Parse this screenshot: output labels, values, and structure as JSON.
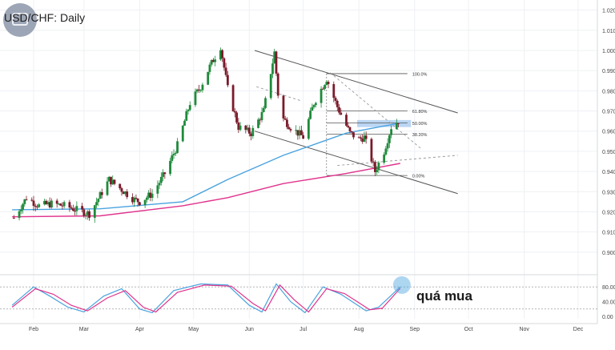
{
  "chart_data": {
    "type": "candlestick",
    "title": "USD/CHF: Daily",
    "x_axis": {
      "months": [
        "Feb",
        "Mar",
        "Apr",
        "May",
        "Jun",
        "Jul",
        "Aug",
        "Sep",
        "Oct",
        "Nov",
        "Dec"
      ]
    },
    "y_axis": {
      "range": [
        0.89,
        1.025
      ],
      "ticks": [
        "1.0200",
        "1.0100",
        "1.0000",
        "0.9900",
        "0.9800",
        "0.9700",
        "0.9600",
        "0.9500",
        "0.9400",
        "0.9300",
        "0.9200",
        "0.9100",
        "0.9000"
      ]
    },
    "price_path": [
      [
        "2022-01-21",
        0.917
      ],
      [
        "2022-01-28",
        0.927
      ],
      [
        "2022-02-04",
        0.923
      ],
      [
        "2022-02-11",
        0.924
      ],
      [
        "2022-02-18",
        0.923
      ],
      [
        "2022-02-25",
        0.921
      ],
      [
        "2022-03-04",
        0.919
      ],
      [
        "2022-03-08",
        0.925
      ],
      [
        "2022-03-15",
        0.936
      ],
      [
        "2022-03-22",
        0.931
      ],
      [
        "2022-03-29",
        0.926
      ],
      [
        "2022-04-01",
        0.925
      ],
      [
        "2022-04-08",
        0.929
      ],
      [
        "2022-04-15",
        0.939
      ],
      [
        "2022-04-22",
        0.953
      ],
      [
        "2022-04-29",
        0.974
      ],
      [
        "2022-05-05",
        0.982
      ],
      [
        "2022-05-10",
        0.992
      ],
      [
        "2022-05-16",
        1.002
      ],
      [
        "2022-05-20",
        0.981
      ],
      [
        "2022-05-26",
        0.962
      ],
      [
        "2022-06-02",
        0.959
      ],
      [
        "2022-06-09",
        0.97
      ],
      [
        "2022-06-15",
        0.999
      ],
      [
        "2022-06-18",
        0.968
      ],
      [
        "2022-06-24",
        0.962
      ],
      [
        "2022-07-01",
        0.957
      ],
      [
        "2022-07-07",
        0.974
      ],
      [
        "2022-07-14",
        0.986
      ],
      [
        "2022-07-20",
        0.972
      ],
      [
        "2022-07-27",
        0.959
      ],
      [
        "2022-08-01",
        0.956
      ],
      [
        "2022-08-04",
        0.957
      ],
      [
        "2022-08-08",
        0.946
      ],
      [
        "2022-08-10",
        0.94
      ],
      [
        "2022-08-15",
        0.95
      ],
      [
        "2022-08-19",
        0.962
      ],
      [
        "2022-08-24",
        0.966
      ]
    ],
    "moving_averages": [
      {
        "color": "#4aa3df",
        "points": [
          [
            "2022-01-20",
            0.921
          ],
          [
            "2022-03-10",
            0.9215
          ],
          [
            "2022-04-25",
            0.925
          ],
          [
            "2022-05-20",
            0.936
          ],
          [
            "2022-06-20",
            0.948
          ],
          [
            "2022-07-25",
            0.959
          ],
          [
            "2022-08-24",
            0.964
          ]
        ]
      },
      {
        "color": "#e0338c",
        "points": [
          [
            "2022-01-20",
            0.9175
          ],
          [
            "2022-03-10",
            0.918
          ],
          [
            "2022-04-25",
            0.923
          ],
          [
            "2022-05-20",
            0.927
          ],
          [
            "2022-06-20",
            0.934
          ],
          [
            "2022-07-25",
            0.939
          ],
          [
            "2022-08-24",
            0.944
          ]
        ]
      }
    ],
    "channel_lines": [
      {
        "from": [
          "2022-06-04",
          1.0
        ],
        "to": [
          "2022-09-25",
          0.969
        ]
      },
      {
        "from": [
          "2022-06-04",
          0.96
        ],
        "to": [
          "2022-09-25",
          0.929
        ]
      }
    ],
    "dashed_lines": [
      {
        "from": [
          "2022-06-05",
          0.982
        ],
        "to": [
          "2022-06-30",
          0.975
        ]
      },
      {
        "from": [
          "2022-07-16",
          0.989
        ],
        "to": [
          "2022-09-05",
          0.951
        ]
      },
      {
        "from": [
          "2022-07-20",
          0.943
        ],
        "to": [
          "2022-09-25",
          0.948
        ]
      }
    ],
    "fibonacci": {
      "from_date": "2022-07-14",
      "to_date": "2022-08-28",
      "levels": [
        {
          "label": "100.0%",
          "value": 0.9885
        },
        {
          "label": "61.80%",
          "value": 0.97
        },
        {
          "label": "50.00%",
          "value": 0.964
        },
        {
          "label": "38.20%",
          "value": 0.9585
        },
        {
          "label": "0.00%",
          "value": 0.938
        }
      ]
    },
    "highlight_zone": {
      "from_date": "2022-07-31",
      "to_date": "2022-08-30",
      "low": 0.962,
      "high": 0.9655,
      "color": "#9ec5ee"
    },
    "oscillator": {
      "range": [
        0,
        100
      ],
      "ticks": [
        "80.00",
        "40.00",
        "0.00"
      ],
      "guide_levels": [
        80,
        20
      ],
      "series": [
        {
          "name": "",
          "color": "#4aa3df",
          "points": [
            [
              "2022-01-20",
              30
            ],
            [
              "2022-02-01",
              80
            ],
            [
              "2022-02-10",
              55
            ],
            [
              "2022-02-20",
              25
            ],
            [
              "2022-03-01",
              12
            ],
            [
              "2022-03-12",
              55
            ],
            [
              "2022-03-22",
              75
            ],
            [
              "2022-04-01",
              20
            ],
            [
              "2022-04-08",
              10
            ],
            [
              "2022-04-20",
              70
            ],
            [
              "2022-05-05",
              88
            ],
            [
              "2022-05-20",
              85
            ],
            [
              "2022-06-01",
              30
            ],
            [
              "2022-06-08",
              12
            ],
            [
              "2022-06-16",
              88
            ],
            [
              "2022-06-24",
              40
            ],
            [
              "2022-07-02",
              10
            ],
            [
              "2022-07-12",
              80
            ],
            [
              "2022-07-22",
              60
            ],
            [
              "2022-08-05",
              15
            ],
            [
              "2022-08-12",
              25
            ],
            [
              "2022-08-24",
              80
            ]
          ]
        },
        {
          "name": "",
          "color": "#e0338c",
          "points": [
            [
              "2022-01-20",
              25
            ],
            [
              "2022-02-02",
              75
            ],
            [
              "2022-02-12",
              60
            ],
            [
              "2022-02-22",
              30
            ],
            [
              "2022-03-03",
              15
            ],
            [
              "2022-03-14",
              50
            ],
            [
              "2022-03-24",
              70
            ],
            [
              "2022-04-03",
              25
            ],
            [
              "2022-04-10",
              12
            ],
            [
              "2022-04-22",
              65
            ],
            [
              "2022-05-07",
              85
            ],
            [
              "2022-05-22",
              82
            ],
            [
              "2022-06-03",
              35
            ],
            [
              "2022-06-10",
              15
            ],
            [
              "2022-06-18",
              85
            ],
            [
              "2022-06-26",
              45
            ],
            [
              "2022-07-04",
              12
            ],
            [
              "2022-07-14",
              75
            ],
            [
              "2022-07-24",
              62
            ],
            [
              "2022-08-07",
              18
            ],
            [
              "2022-08-14",
              22
            ],
            [
              "2022-08-24",
              76
            ]
          ]
        }
      ],
      "marker_date": "2022-08-24",
      "marker_value": 85,
      "annotation": "quá mua"
    }
  },
  "colors": {
    "bullish": "#1f8a3b",
    "bearish": "#7a1a2a",
    "grid": "#eef0f4",
    "axis_text": "#444"
  }
}
